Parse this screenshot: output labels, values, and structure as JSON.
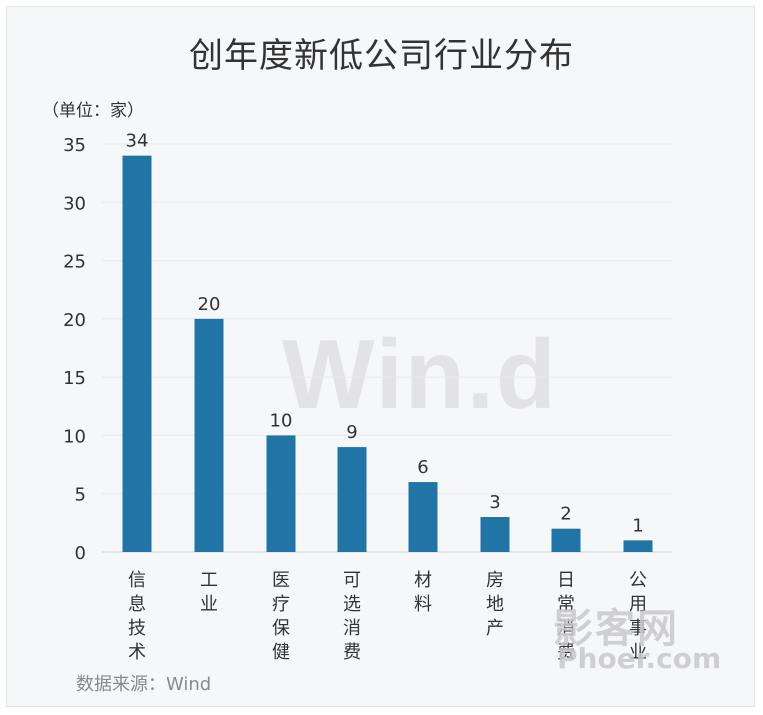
{
  "chart_data": {
    "type": "bar",
    "title": "创年度新低公司行业分布",
    "unit_label": "（单位：家）",
    "categories": [
      "信息技术",
      "工业",
      "医疗保健",
      "可选消费",
      "材料",
      "房地产",
      "日常消费",
      "公用事业"
    ],
    "values": [
      34,
      20,
      10,
      9,
      6,
      3,
      2,
      1
    ],
    "ylim": [
      0,
      35
    ],
    "yticks": [
      0,
      5,
      10,
      15,
      20,
      25,
      30,
      35
    ],
    "grid": true,
    "bar_color": "#2074a6",
    "source": "数据来源：Wind"
  },
  "watermarks": {
    "wind": "Win.d",
    "phoer_cn": "影客网",
    "phoer_en": "Phoer.com"
  }
}
